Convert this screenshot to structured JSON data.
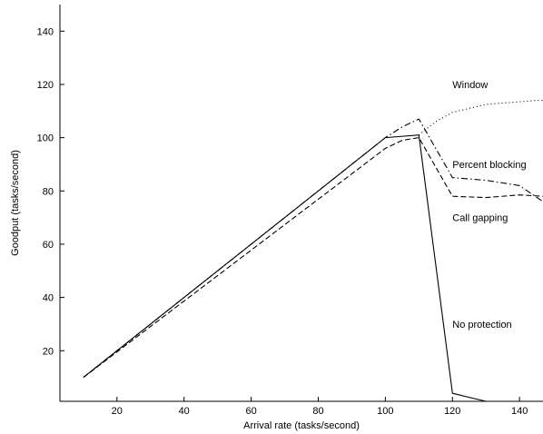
{
  "chart_data": {
    "type": "line",
    "title": "",
    "xlabel": "Arrival rate (tasks/second)",
    "ylabel": "Goodput (tasks/second)",
    "xlim": [
      3,
      147
    ],
    "ylim": [
      1,
      150
    ],
    "xticks": [
      20,
      40,
      60,
      80,
      100,
      120,
      140
    ],
    "yticks": [
      20,
      40,
      60,
      80,
      100,
      120,
      140
    ],
    "grid": false,
    "legend": "none (series labeled by inline annotations)",
    "series": [
      {
        "name": "No protection",
        "style": "solid",
        "x": [
          10,
          100,
          110,
          120,
          130
        ],
        "y": [
          10,
          100,
          101,
          4,
          0
        ]
      },
      {
        "name": "Call gapping",
        "style": "dashed",
        "x": [
          10,
          100,
          105,
          110,
          120,
          130,
          140,
          147
        ],
        "y": [
          10,
          96,
          99,
          100,
          78,
          77.5,
          78.5,
          78
        ]
      },
      {
        "name": "Percent blocking",
        "style": "dashdot",
        "x": [
          10,
          100,
          105,
          110,
          120,
          130,
          140,
          147
        ],
        "y": [
          10,
          100,
          104,
          107,
          85,
          84,
          82,
          76
        ]
      },
      {
        "name": "Window",
        "style": "dotted",
        "x": [
          110,
          115,
          120,
          125,
          130,
          135,
          140,
          145,
          147
        ],
        "y": [
          101,
          106,
          109.5,
          111,
          112.5,
          113,
          113.5,
          114,
          114
        ]
      }
    ],
    "annotations": [
      {
        "text": "Window",
        "x": 120,
        "y": 120
      },
      {
        "text": "Percent blocking",
        "x": 120,
        "y": 90
      },
      {
        "text": "Call gapping",
        "x": 120,
        "y": 70
      },
      {
        "text": "No protection",
        "x": 120,
        "y": 30
      }
    ]
  }
}
